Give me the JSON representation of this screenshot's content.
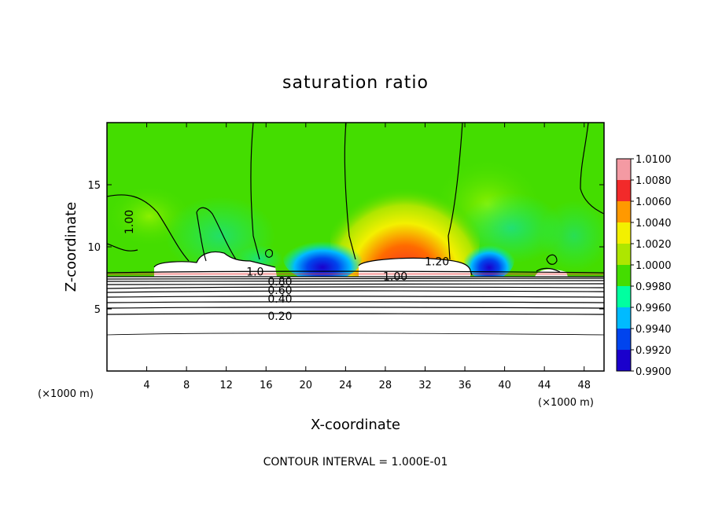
{
  "chart_data": {
    "type": "heatmap",
    "title": "saturation ratio",
    "xlabel": "X-coordinate",
    "ylabel": "Z-coordinate",
    "x_unit_left": "(×1000 m)",
    "x_unit_right": "(×1000 m)",
    "xlim": [
      0,
      50
    ],
    "ylim": [
      0,
      20
    ],
    "xticks": [
      4,
      8,
      12,
      16,
      20,
      24,
      28,
      32,
      36,
      40,
      44,
      48
    ],
    "yticks": [
      5,
      10,
      15
    ],
    "colorbar": {
      "levels": [
        "1.0100",
        "1.0080",
        "1.0060",
        "1.0040",
        "1.0020",
        "1.0000",
        "0.9980",
        "0.9960",
        "0.9940",
        "0.9920",
        "0.9900"
      ],
      "colors": [
        "#f49aa3",
        "#f22a2a",
        "#ff9900",
        "#f3f000",
        "#aee600",
        "#44dd00",
        "#00ffa0",
        "#00bbff",
        "#0044ee",
        "#1a00cc",
        "#7a30d8"
      ]
    },
    "contour_labels": [
      {
        "text": "1.00",
        "x": 2.6,
        "z": 12.0,
        "rotate": -90
      },
      {
        "text": "1.20",
        "x": 33.2,
        "z": 8.5,
        "rotate": 0
      },
      {
        "text": "1.00",
        "x": 29.0,
        "z": 7.3,
        "rotate": 0
      },
      {
        "text": "1.0",
        "x": 14.9,
        "z": 7.7,
        "rotate": 0
      },
      {
        "text": "0.80",
        "x": 17.4,
        "z": 6.9,
        "rotate": 0
      },
      {
        "text": "0.60",
        "x": 17.4,
        "z": 6.2,
        "rotate": 0
      },
      {
        "text": "0.40",
        "x": 17.4,
        "z": 5.5,
        "rotate": 0
      },
      {
        "text": "0.20",
        "x": 17.4,
        "z": 4.1,
        "rotate": 0
      }
    ],
    "contour_interval_text": "CONTOUR INTERVAL = 1.000E-01"
  }
}
